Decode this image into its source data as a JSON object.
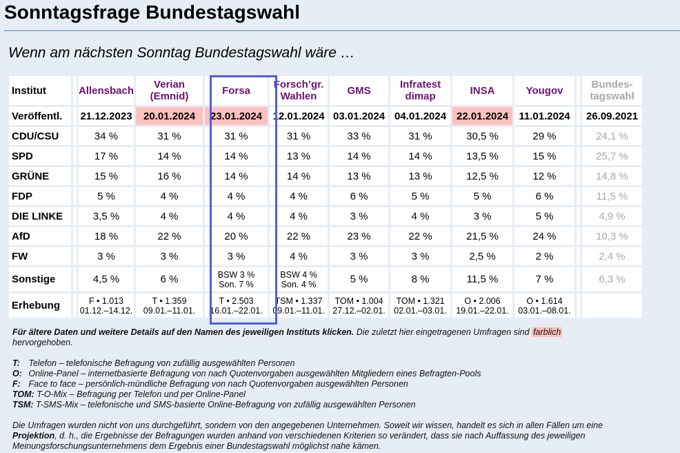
{
  "page": {
    "title": "Sonntagsfrage Bundestagswahl",
    "subtitle": "Wenn am nächsten Sonntag Bundestagswahl wäre …"
  },
  "table": {
    "corner_label": "Institut",
    "date_label": "Veröffentl.",
    "survey_label": "Erhebung",
    "institutes": [
      {
        "name_line1": "Allensbach",
        "name_line2": "",
        "date": "21.12.2023",
        "highlighted": false
      },
      {
        "name_line1": "Verian",
        "name_line2": "(Emnid)",
        "date": "20.01.2024",
        "highlighted": true
      },
      {
        "name_line1": "Forsa",
        "name_line2": "",
        "date": "23.01.2024",
        "highlighted": true,
        "boxed": true
      },
      {
        "name_line1": "Forsch’gr.",
        "name_line2": "Wahlen",
        "date": "12.01.2024",
        "highlighted": false
      },
      {
        "name_line1": "GMS",
        "name_line2": "",
        "date": "03.01.2024",
        "highlighted": false
      },
      {
        "name_line1": "Infratest",
        "name_line2": "dimap",
        "date": "04.01.2024",
        "highlighted": false
      },
      {
        "name_line1": "INSA",
        "name_line2": "",
        "date": "22.01.2024",
        "highlighted": true
      },
      {
        "name_line1": "Yougov",
        "name_line2": "",
        "date": "11.01.2024",
        "highlighted": false
      }
    ],
    "election": {
      "name_line1": "Bundes-",
      "name_line2": "tagswahl",
      "date": "26.09.2021"
    },
    "parties": [
      {
        "name": "CDU/CSU",
        "values": [
          "34 %",
          "31 %",
          "31 %",
          "31 %",
          "33 %",
          "31 %",
          "30,5 %",
          "29 %"
        ],
        "election": "24,1 %"
      },
      {
        "name": "SPD",
        "values": [
          "17 %",
          "14 %",
          "14 %",
          "13 %",
          "14 %",
          "14 %",
          "13,5 %",
          "15 %"
        ],
        "election": "25,7 %"
      },
      {
        "name": "GRÜNE",
        "values": [
          "15 %",
          "16 %",
          "14 %",
          "14 %",
          "13 %",
          "13 %",
          "12,5 %",
          "12 %"
        ],
        "election": "14,8 %"
      },
      {
        "name": "FDP",
        "values": [
          "5 %",
          "4 %",
          "4 %",
          "4 %",
          "6 %",
          "5 %",
          "5 %",
          "6 %"
        ],
        "election": "11,5 %"
      },
      {
        "name": "DIE LINKE",
        "values": [
          "3,5 %",
          "4 %",
          "4 %",
          "4 %",
          "3 %",
          "4 %",
          "3 %",
          "5 %"
        ],
        "election": "4,9 %"
      },
      {
        "name": "AfD",
        "values": [
          "18 %",
          "22 %",
          "20 %",
          "22 %",
          "23 %",
          "22 %",
          "21,5 %",
          "24 %"
        ],
        "election": "10,3 %"
      },
      {
        "name": "FW",
        "values": [
          "3 %",
          "3 %",
          "3 %",
          "4 %",
          "3 %",
          "3 %",
          "2,5 %",
          "2 %"
        ],
        "election": "2,4 %"
      }
    ],
    "sonstige": {
      "name": "Sonstige",
      "values": [
        {
          "line1": "4,5 %",
          "line2": ""
        },
        {
          "line1": "6 %",
          "line2": ""
        },
        {
          "line1": "BSW 3 %",
          "line2": "Son. 7 %"
        },
        {
          "line1": "BSW 4 %",
          "line2": "Son. 4 %"
        },
        {
          "line1": "5 %",
          "line2": ""
        },
        {
          "line1": "8 %",
          "line2": ""
        },
        {
          "line1": "11,5 %",
          "line2": ""
        },
        {
          "line1": "7 %",
          "line2": ""
        }
      ],
      "election": "6,3 %"
    },
    "surveys": [
      {
        "method": "F • 1.013",
        "period": "01.12.–14.12."
      },
      {
        "method": "T • 1.359",
        "period": "09.01.–11.01."
      },
      {
        "method": "T • 2.503",
        "period": "16.01.–22.01."
      },
      {
        "method": "TSM • 1.337",
        "period": "09.01.–11.01."
      },
      {
        "method": "TOM • 1.004",
        "period": "27.12.–02.01."
      },
      {
        "method": "TOM • 1.321",
        "period": "02.01.–03.01."
      },
      {
        "method": "O • 2.006",
        "period": "19.01.–22.01."
      },
      {
        "method": "O • 1.614",
        "period": "03.01.–08.01."
      }
    ]
  },
  "notes": {
    "intro_bold": "Für ältere Daten und weitere Details auf den Namen des jeweiligen Instituts klicken.",
    "intro_rest": " Die zuletzt hier eingetragenen Umfragen sind ",
    "highlight_word": "farblich",
    "intro_end": "hervorgehoben.",
    "legend": [
      {
        "key": "T:",
        "text": "Telefon – telefonische Befragung von zufällig ausgewählten Personen"
      },
      {
        "key": "O:",
        "text": "Online-Panel – internetbasierte Befragung von nach Quotenvorgaben ausgewählten Mitgliedern eines Befragten-Pools"
      },
      {
        "key": "F:",
        "text": "Face to face – persönlich-mündliche Befragung von nach Quotenvorgaben ausgewählten Personen"
      },
      {
        "key": "TOM:",
        "text": "T-O-Mix – Befragung per Telefon und per Online-Panel"
      },
      {
        "key": "TSM:",
        "text": "T-SMS-Mix – telefonische und SMS-basierte Online-Befragung von zufällig ausgewählten Personen"
      }
    ],
    "disclaimer_1": "Die Umfragen wurden nicht von uns durchgeführt, sondern von den angegebenen Unternehmen. Soweit wir wissen, handelt es sich in allen Fällen um eine",
    "disclaimer_bold": "Projektion",
    "disclaimer_2": ", d. h., die Ergebnisse der Befragungen wurden anhand von verschiedenen Kriterien so verändert, dass sie nach Auffassung des jeweiligen Meinungsforschungsunternehmens dem Ergebnis einer Bundestagswahl möglichst nahe kämen."
  },
  "colors": {
    "background": "#e6edf5",
    "institute_link": "#6e1170",
    "highlight": "#ffc0c0",
    "forsa_box": "#4d5fe6",
    "election_gray": "#a8a8a8",
    "title_rule": "#4a86be"
  }
}
